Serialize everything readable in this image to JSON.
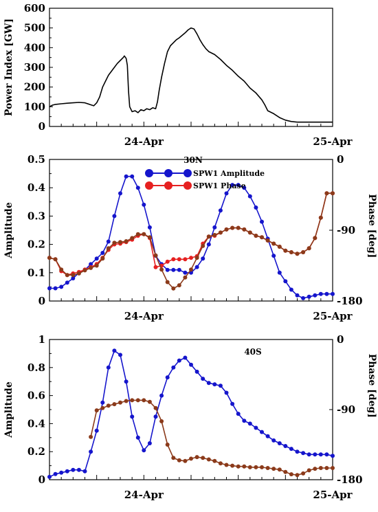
{
  "chart_data": [
    {
      "type": "line",
      "ylabel": "Power Index [GW]",
      "ylim": [
        0,
        600
      ],
      "yticks": [
        0,
        100,
        200,
        300,
        400,
        500,
        600
      ],
      "xlim": [
        0,
        48
      ],
      "xticks": [
        {
          "x": 16,
          "label": "24-Apr"
        },
        {
          "x": 48,
          "label": "25-Apr"
        }
      ],
      "series": [
        {
          "color": "#000000",
          "points": [
            [
              0,
              100
            ],
            [
              0.5,
              108
            ],
            [
              1,
              112
            ],
            [
              2,
              115
            ],
            [
              3,
              118
            ],
            [
              4,
              120
            ],
            [
              5,
              122
            ],
            [
              6,
              120
            ],
            [
              7,
              110
            ],
            [
              7.5,
              105
            ],
            [
              8,
              120
            ],
            [
              8.5,
              150
            ],
            [
              9,
              200
            ],
            [
              9.5,
              230
            ],
            [
              10,
              260
            ],
            [
              11,
              300
            ],
            [
              11.5,
              320
            ],
            [
              12,
              335
            ],
            [
              12.5,
              350
            ],
            [
              12.7,
              358
            ],
            [
              13,
              345
            ],
            [
              13.2,
              310
            ],
            [
              13.4,
              180
            ],
            [
              13.6,
              100
            ],
            [
              14,
              75
            ],
            [
              14.5,
              80
            ],
            [
              15,
              70
            ],
            [
              15.5,
              85
            ],
            [
              16,
              80
            ],
            [
              16.5,
              90
            ],
            [
              17,
              85
            ],
            [
              17.5,
              95
            ],
            [
              18,
              90
            ],
            [
              18.3,
              125
            ],
            [
              18.6,
              185
            ],
            [
              19,
              250
            ],
            [
              19.5,
              320
            ],
            [
              20,
              380
            ],
            [
              20.5,
              410
            ],
            [
              21,
              425
            ],
            [
              21.5,
              440
            ],
            [
              22,
              450
            ],
            [
              23,
              475
            ],
            [
              23.5,
              490
            ],
            [
              24,
              500
            ],
            [
              24.5,
              495
            ],
            [
              25,
              470
            ],
            [
              25.5,
              440
            ],
            [
              26,
              415
            ],
            [
              26.5,
              395
            ],
            [
              27,
              380
            ],
            [
              28,
              365
            ],
            [
              29,
              340
            ],
            [
              30,
              310
            ],
            [
              31,
              285
            ],
            [
              32,
              255
            ],
            [
              33,
              230
            ],
            [
              34,
              195
            ],
            [
              35,
              170
            ],
            [
              36,
              135
            ],
            [
              36.5,
              110
            ],
            [
              37,
              80
            ],
            [
              38,
              65
            ],
            [
              39,
              45
            ],
            [
              40,
              32
            ],
            [
              41,
              25
            ],
            [
              42,
              22
            ],
            [
              45,
              22
            ],
            [
              48,
              22
            ]
          ]
        }
      ]
    },
    {
      "type": "line",
      "annotation": "30N",
      "ylabel": "Amplitude",
      "y2label": "Phase [deg]",
      "ylim": [
        0,
        0.5
      ],
      "yticks": [
        0,
        0.1,
        0.2,
        0.3,
        0.4,
        0.5
      ],
      "y2lim": [
        -180,
        0
      ],
      "y2ticks": [
        -180,
        -90,
        0
      ],
      "xlim": [
        0,
        48
      ],
      "xticks": [
        {
          "x": 16,
          "label": "24-Apr"
        },
        {
          "x": 48,
          "label": "25-Apr"
        }
      ],
      "legend": "top-center",
      "series": [
        {
          "name": "SPW1 Amplitude",
          "color": "#1515cc",
          "x": [
            0,
            1,
            2,
            3,
            4,
            5,
            6,
            7,
            8,
            9,
            10,
            11,
            12,
            13,
            14,
            15,
            16,
            17,
            18,
            19,
            20,
            21,
            22,
            23,
            24,
            25,
            26,
            27,
            28,
            29,
            30,
            31,
            32,
            33,
            34,
            35,
            36,
            37,
            38,
            39,
            40,
            41,
            42,
            43,
            44,
            45,
            46,
            47,
            48
          ],
          "y": [
            0.045,
            0.045,
            0.05,
            0.065,
            0.08,
            0.1,
            0.11,
            0.13,
            0.15,
            0.17,
            0.21,
            0.3,
            0.38,
            0.44,
            0.44,
            0.4,
            0.34,
            0.26,
            0.16,
            0.13,
            0.11,
            0.11,
            0.11,
            0.1,
            0.1,
            0.12,
            0.15,
            0.2,
            0.26,
            0.32,
            0.38,
            0.41,
            0.41,
            0.4,
            0.37,
            0.33,
            0.28,
            0.22,
            0.16,
            0.1,
            0.07,
            0.04,
            0.02,
            0.01,
            0.015,
            0.02,
            0.025,
            0.025,
            0.025
          ]
        },
        {
          "name": "SPW1 Phase",
          "color": "#e62020",
          "x": [
            0,
            1,
            2,
            3,
            4,
            5,
            6,
            7,
            8,
            9,
            10,
            11,
            12,
            13,
            14,
            15,
            16,
            17,
            18,
            19,
            20,
            21,
            22,
            23,
            24,
            25,
            26,
            27,
            28,
            29,
            30,
            31,
            32,
            33,
            34,
            35,
            36,
            37,
            38,
            39,
            40,
            41,
            42,
            43,
            44,
            45,
            46,
            47,
            48
          ],
          "y": [
            -125,
            -127,
            -142,
            -147,
            -145,
            -143,
            -140,
            -137,
            -133,
            -125,
            -115,
            -108,
            -107,
            -105,
            -102,
            -97,
            -95,
            -100,
            -137,
            -135,
            -130,
            -127,
            -127,
            -127,
            -125,
            -123,
            -107,
            -98,
            -97,
            -93,
            -89,
            -87,
            -87,
            -89,
            -93,
            -97,
            -99,
            -103,
            -107,
            -111,
            -116,
            -118,
            -120,
            -118,
            -113,
            -100,
            -74,
            -43,
            -43
          ]
        },
        {
          "name": "",
          "color": "#8b3a1a",
          "x": [
            0,
            1,
            2,
            3,
            4,
            5,
            6,
            7,
            8,
            9,
            10,
            11,
            12,
            13,
            14,
            15,
            16,
            17,
            18,
            19,
            20,
            21,
            22,
            23,
            24,
            25,
            26,
            27,
            28,
            29,
            30,
            31,
            32,
            33,
            34,
            35,
            36,
            37,
            38,
            39,
            40,
            41,
            42,
            43,
            44,
            45,
            46,
            47,
            48
          ],
          "y": [
            -125,
            -127,
            -140,
            -147,
            -147,
            -145,
            -141,
            -138,
            -135,
            -126,
            -113,
            -106,
            -105,
            -104,
            -100,
            -95,
            -95,
            -99,
            -122,
            -140,
            -156,
            -164,
            -160,
            -150,
            -140,
            -125,
            -110,
            -98,
            -96,
            -93,
            -89,
            -87,
            -87,
            -89,
            -93,
            -97,
            -99,
            -103,
            -107,
            -111,
            -116,
            -118,
            -120,
            -118,
            -113,
            -100,
            -74,
            -43,
            -43
          ]
        }
      ]
    },
    {
      "type": "line",
      "annotation": "40S",
      "ylabel": "Amplitude",
      "y2label": "Phase [deg]",
      "ylim": [
        0,
        1
      ],
      "yticks": [
        0,
        0.2,
        0.4,
        0.6,
        0.8,
        1
      ],
      "y2lim": [
        -180,
        0
      ],
      "y2ticks": [
        -180,
        -90,
        0
      ],
      "xlim": [
        0,
        48
      ],
      "xticks": [
        {
          "x": 16,
          "label": "24-Apr"
        },
        {
          "x": 48,
          "label": "25-Apr"
        }
      ],
      "series": [
        {
          "name": "",
          "color": "#1515cc",
          "x": [
            0,
            1,
            2,
            3,
            4,
            5,
            6,
            7,
            8,
            9,
            10,
            11,
            12,
            13,
            14,
            15,
            16,
            17,
            18,
            19,
            20,
            21,
            22,
            23,
            24,
            25,
            26,
            27,
            28,
            29,
            30,
            31,
            32,
            33,
            34,
            35,
            36,
            37,
            38,
            39,
            40,
            41,
            42,
            43,
            44,
            45,
            46,
            47,
            48
          ],
          "y": [
            0.02,
            0.04,
            0.05,
            0.06,
            0.07,
            0.07,
            0.06,
            0.2,
            0.35,
            0.55,
            0.8,
            0.92,
            0.89,
            0.7,
            0.45,
            0.3,
            0.21,
            0.26,
            0.45,
            0.6,
            0.73,
            0.8,
            0.85,
            0.87,
            0.82,
            0.77,
            0.72,
            0.69,
            0.68,
            0.67,
            0.62,
            0.54,
            0.47,
            0.42,
            0.4,
            0.37,
            0.34,
            0.31,
            0.28,
            0.26,
            0.24,
            0.22,
            0.2,
            0.19,
            0.18,
            0.18,
            0.18,
            0.18,
            0.17
          ]
        },
        {
          "name": "",
          "color": "#8b3a1a",
          "x": [
            7,
            8,
            9,
            10,
            11,
            12,
            13,
            14,
            15,
            16,
            17,
            18,
            19,
            20,
            21,
            22,
            23,
            24,
            25,
            26,
            27,
            28,
            29,
            30,
            31,
            32,
            33,
            34,
            35,
            36,
            37,
            38,
            39,
            40,
            41,
            42,
            43,
            44,
            45,
            46,
            47,
            48
          ],
          "y": [
            -125,
            -91,
            -88,
            -85,
            -83,
            -81,
            -79,
            -78,
            -78,
            -78,
            -80,
            -88,
            -105,
            -135,
            -152,
            -155,
            -156,
            -153,
            -151,
            -152,
            -154,
            -156,
            -159,
            -161,
            -162,
            -163,
            -163,
            -164,
            -164,
            -164,
            -165,
            -166,
            -167,
            -170,
            -173,
            -174,
            -172,
            -168,
            -166,
            -165,
            -165,
            -165
          ]
        }
      ]
    }
  ]
}
